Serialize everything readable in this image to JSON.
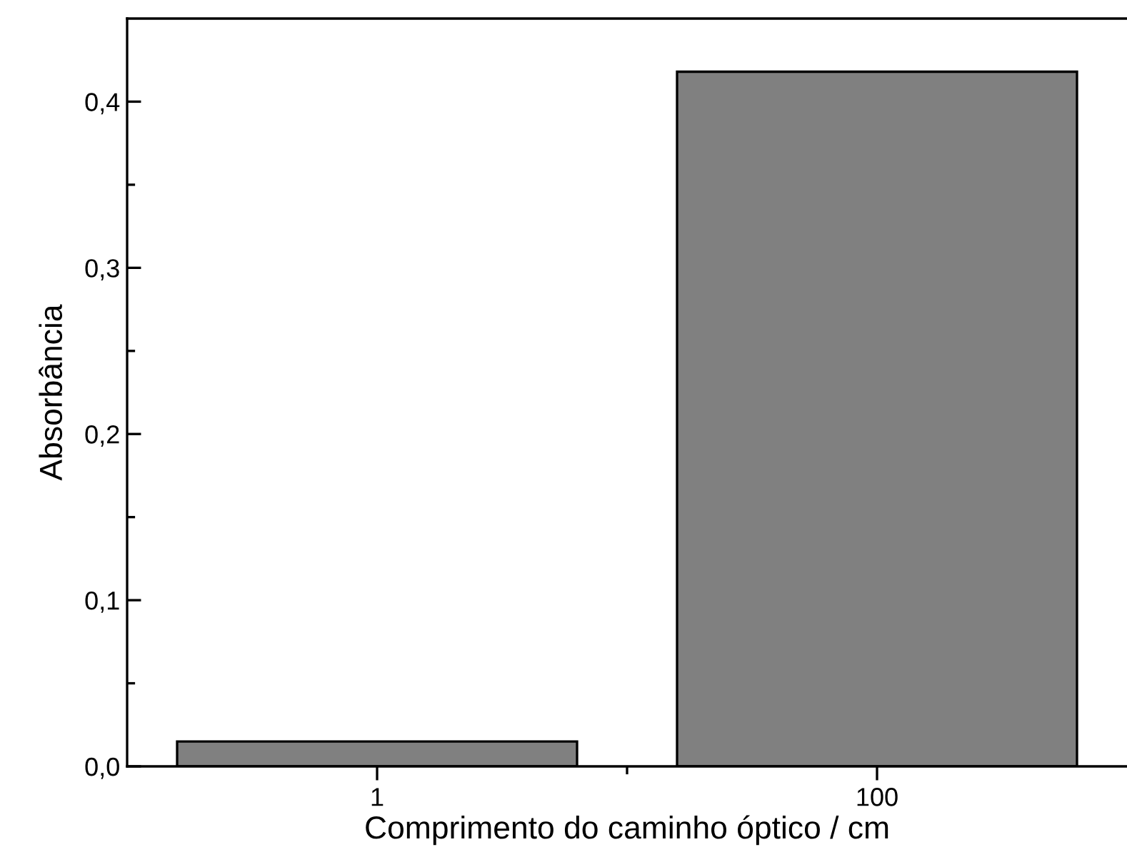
{
  "chart_data": {
    "type": "bar",
    "xlabel": "Comprimento do caminho óptico / cm",
    "ylabel": "Absorbância",
    "categories": [
      "1",
      "100"
    ],
    "values": [
      0.015,
      0.418
    ],
    "color": "#808080",
    "ylim": [
      0,
      0.45
    ],
    "yticks": [
      {
        "value": 0,
        "label": "0,0"
      },
      {
        "value": 0.05,
        "label": null
      },
      {
        "value": 0.1,
        "label": "0,1"
      },
      {
        "value": 0.15,
        "label": null
      },
      {
        "value": 0.2,
        "label": "0,2"
      },
      {
        "value": 0.25,
        "label": null
      },
      {
        "value": 0.3,
        "label": "0,3"
      },
      {
        "value": 0.35,
        "label": null
      },
      {
        "value": 0.4,
        "label": "0,4"
      }
    ],
    "grid": false,
    "legend": false
  }
}
